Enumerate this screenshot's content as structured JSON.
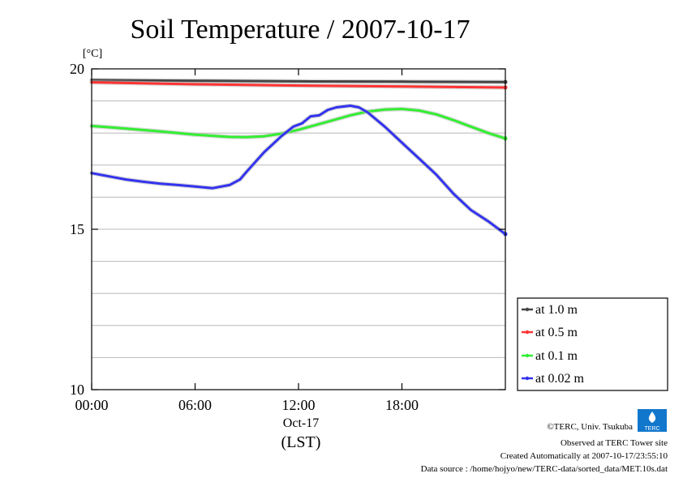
{
  "chart_data": {
    "type": "line",
    "title": "Soil Temperature / 2007-10-17",
    "ylabel": "[°C]",
    "xlabel": "(LST)",
    "date_label": "Oct-17",
    "xlim_hours": [
      0,
      24
    ],
    "ylim": [
      10,
      20
    ],
    "grid": true,
    "legend_placement": "right",
    "x_ticks": [
      {
        "hour": 0,
        "label": "00:00"
      },
      {
        "hour": 6,
        "label": "06:00"
      },
      {
        "hour": 12,
        "label": "12:00"
      },
      {
        "hour": 18,
        "label": "18:00"
      }
    ],
    "y_ticks": [
      {
        "value": 10,
        "label": "10"
      },
      {
        "value": 15,
        "label": "15"
      },
      {
        "value": 20,
        "label": "20"
      }
    ],
    "y_grid_values": [
      11,
      12,
      13,
      14,
      15,
      16,
      17,
      18,
      19
    ],
    "series": [
      {
        "name": "at 1.0 m",
        "color": "#444444",
        "x": [
          0,
          6,
          12,
          18,
          24
        ],
        "y": [
          19.65,
          19.63,
          19.61,
          19.6,
          19.59
        ]
      },
      {
        "name": "at 0.5 m",
        "color": "#ff3333",
        "x": [
          0,
          6,
          12,
          18,
          24
        ],
        "y": [
          19.58,
          19.52,
          19.48,
          19.45,
          19.42
        ]
      },
      {
        "name": "at 0.1 m",
        "color": "#33ee33",
        "x": [
          0,
          2,
          4,
          6,
          8,
          9,
          10,
          11,
          12,
          13,
          14,
          15,
          16,
          17,
          18,
          19,
          20,
          21,
          22,
          23,
          24
        ],
        "y": [
          18.22,
          18.14,
          18.05,
          17.95,
          17.88,
          17.87,
          17.9,
          17.98,
          18.1,
          18.25,
          18.4,
          18.55,
          18.67,
          18.73,
          18.75,
          18.7,
          18.58,
          18.4,
          18.2,
          18.0,
          17.83
        ]
      },
      {
        "name": "at 0.02 m",
        "color": "#3333ee",
        "x": [
          0,
          1,
          2,
          3,
          4,
          5,
          6,
          7,
          8,
          8.6,
          9,
          10,
          11,
          11.7,
          12.2,
          12.7,
          13.2,
          13.7,
          14.2,
          15,
          15.5,
          16,
          17,
          18,
          19,
          20,
          21,
          22,
          23,
          24
        ],
        "y": [
          16.75,
          16.65,
          16.55,
          16.48,
          16.42,
          16.38,
          16.33,
          16.28,
          16.38,
          16.55,
          16.8,
          17.4,
          17.9,
          18.2,
          18.3,
          18.52,
          18.55,
          18.72,
          18.8,
          18.85,
          18.8,
          18.65,
          18.2,
          17.7,
          17.2,
          16.7,
          16.1,
          15.6,
          15.25,
          14.85
        ]
      }
    ]
  },
  "footer": {
    "copyright": "©TERC, Univ. Tsukuba",
    "observed": "Observed at TERC Tower site",
    "created": "Created Automatically at 2007-10-17/23:55:10",
    "source": "Data source : /home/hojyo/new/TERC-data/sorted_data/MET.10s.dat",
    "logo_text": "TERC"
  }
}
